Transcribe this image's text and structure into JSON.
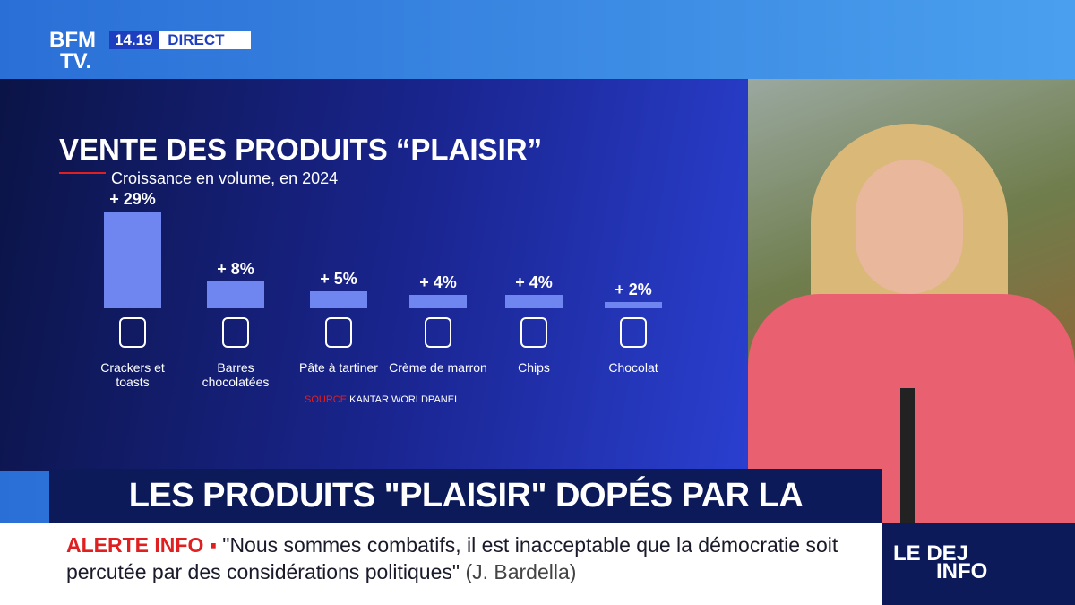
{
  "chart_data": {
    "type": "bar",
    "title": "VENTE DES PRODUITS “PLAISIR”",
    "subtitle": "Croissance en volume, en 2024",
    "categories": [
      "Crackers et toasts",
      "Barres chocolatées",
      "Pâte à tartiner",
      "Crème de marron",
      "Chips",
      "Chocolat"
    ],
    "values": [
      29,
      8,
      5,
      4,
      4,
      2
    ],
    "value_labels": [
      "+ 29%",
      "+ 8%",
      "+ 5%",
      "+ 4%",
      "+ 4%",
      "+ 2%"
    ],
    "color": "#6f86f0",
    "source_label": "SOURCE",
    "source": "KANTAR WORLDPANEL"
  },
  "broadcast": {
    "logo_top": "BFM",
    "logo_bottom": "TV.",
    "time": "14.19",
    "live": "DIRECT",
    "headline": "LES PRODUITS \"PLAISIR\" DOPÉS PAR LA MOROSITÉ",
    "alert": "ALERTE INFO",
    "quote": "\"Nous sommes combatifs, il est inacceptable que la démocratie soit percutée par des considérations politiques\"",
    "attribution": "(J. Bardella)",
    "show_top": "LE DEJ",
    "show_bottom": "INFO"
  }
}
